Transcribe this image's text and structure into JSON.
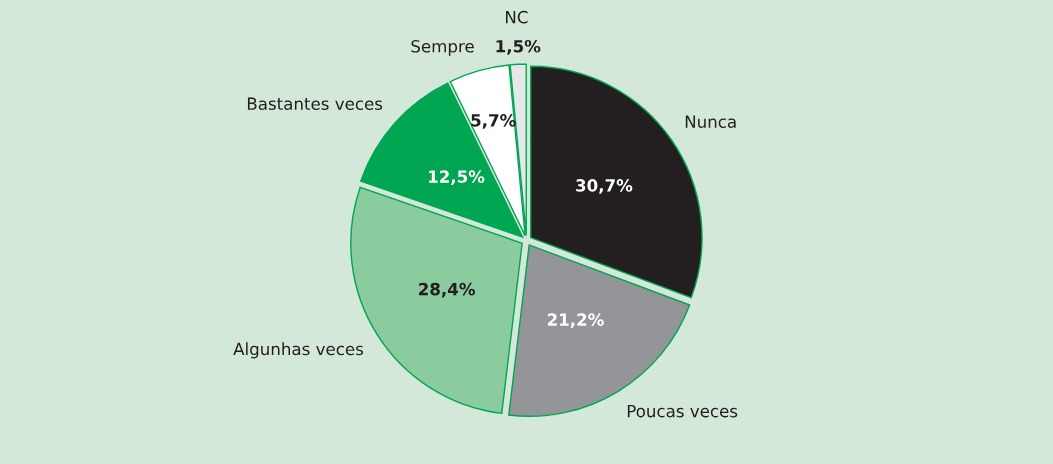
{
  "chart_data": {
    "type": "pie",
    "categories": [
      "Nunca",
      "Poucas veces",
      "Algunhas veces",
      "Bastantes veces",
      "Sempre",
      "NC"
    ],
    "values": [
      30.7,
      21.2,
      28.4,
      12.5,
      5.7,
      1.5
    ],
    "value_labels": [
      "30,7%",
      "21,2%",
      "28,4%",
      "12,5%",
      "5,7%",
      "1,5%"
    ],
    "colors": [
      "#231f20",
      "#939598",
      "#8acc9e",
      "#00a651",
      "#ffffff",
      "#e6e7e8"
    ],
    "legend": false
  }
}
